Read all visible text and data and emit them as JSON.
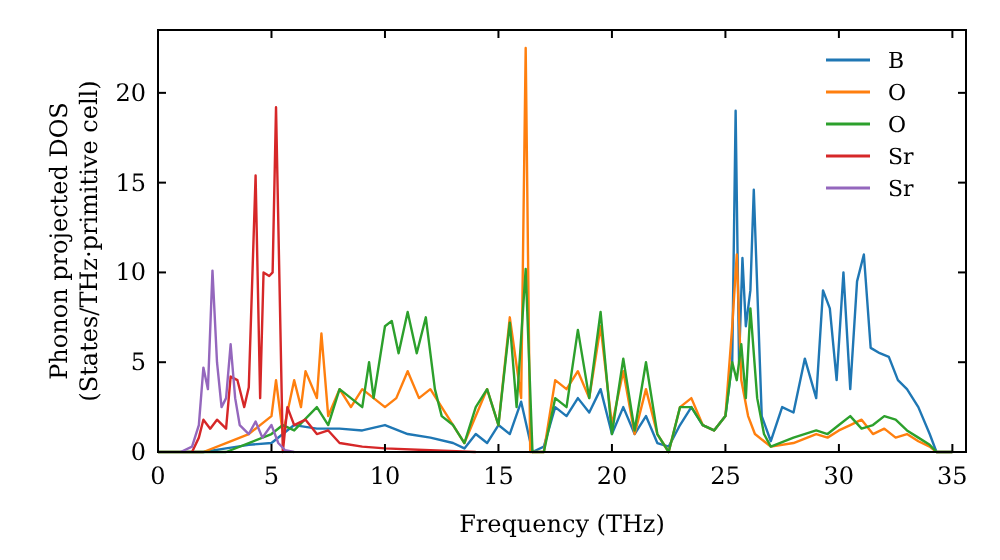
{
  "chart_data": {
    "type": "line",
    "xlabel": "Frequency (THz)",
    "ylabel": "Phonon projected DOS\n(States/THz·primitive cell)",
    "xlim": [
      0,
      35.6
    ],
    "ylim": [
      0,
      23.5
    ],
    "xticks": [
      0,
      5,
      10,
      15,
      20,
      25,
      30,
      35
    ],
    "yticks": [
      0,
      5,
      10,
      15,
      20
    ],
    "legend": "top right",
    "grid": false,
    "series": [
      {
        "name": "B",
        "color": "#1f77b4",
        "x": [
          0,
          2,
          3,
          4,
          5,
          5.5,
          6,
          7,
          8,
          9,
          10,
          11,
          12,
          13,
          13.5,
          14,
          14.5,
          15,
          15.5,
          16,
          16.5,
          17,
          17.5,
          18,
          18.5,
          19,
          19.5,
          20,
          20.5,
          21,
          21.5,
          22,
          22.5,
          23,
          23.5,
          24,
          24.5,
          25,
          25.3,
          25.45,
          25.6,
          25.75,
          25.9,
          26.1,
          26.25,
          26.6,
          27,
          27.5,
          28,
          28.5,
          29,
          29.3,
          29.6,
          29.9,
          30.2,
          30.5,
          30.8,
          31.1,
          31.4,
          31.8,
          32.2,
          32.6,
          33,
          33.5,
          34,
          34.3,
          35
        ],
        "values": [
          0,
          0,
          0.2,
          0.4,
          0.5,
          1.0,
          1.5,
          1.3,
          1.3,
          1.2,
          1.5,
          1.0,
          0.8,
          0.5,
          0.2,
          1.0,
          0.5,
          1.5,
          1.0,
          2.8,
          0,
          0.3,
          2.5,
          2.0,
          3.0,
          2.2,
          3.5,
          1.0,
          2.5,
          1.0,
          2.0,
          0.5,
          0.3,
          1.5,
          2.5,
          1.5,
          1.2,
          2.0,
          5,
          19.0,
          5,
          10.8,
          7,
          9,
          14.6,
          2,
          0.6,
          2.5,
          2.2,
          5.2,
          3.0,
          9.0,
          8.0,
          4,
          10,
          3.5,
          9.5,
          11.0,
          5.8,
          5.5,
          5.3,
          4.0,
          3.5,
          2.5,
          1,
          0,
          0
        ]
      },
      {
        "name": "O",
        "color": "#ff7f0e",
        "x": [
          0,
          2,
          3,
          4,
          5,
          5.2,
          5.5,
          6,
          6.3,
          6.5,
          7,
          7.2,
          7.5,
          8,
          8.5,
          9,
          9.5,
          10,
          10.5,
          11,
          11.5,
          12,
          12.5,
          13,
          13.5,
          14,
          14.5,
          15,
          15.5,
          16,
          16.2,
          16.4,
          17,
          17.5,
          18,
          18.5,
          19,
          19.5,
          20,
          20.5,
          21,
          21.5,
          22,
          22.5,
          23,
          23.5,
          24,
          24.5,
          25,
          25.3,
          25.5,
          25.7,
          26,
          26.3,
          27,
          28,
          29,
          29.5,
          30,
          30.5,
          31,
          31.5,
          32,
          32.5,
          33,
          33.5,
          34,
          34.3,
          35
        ],
        "values": [
          0,
          0,
          0.5,
          1.0,
          2,
          4,
          1,
          4,
          2.5,
          4.5,
          3,
          6.6,
          2,
          3.5,
          2.5,
          3.5,
          3,
          2.5,
          3,
          4.5,
          3,
          3.5,
          2.5,
          1.5,
          0.5,
          2,
          3.5,
          1.5,
          7.5,
          3,
          22.5,
          0,
          0,
          4.0,
          3.5,
          4.5,
          3.0,
          7.0,
          1.5,
          4.5,
          1,
          3.5,
          1,
          0,
          2.5,
          3,
          1.5,
          1.2,
          2,
          7,
          11,
          4,
          2.0,
          1,
          0.3,
          0.5,
          1.0,
          0.8,
          1.2,
          1.5,
          1.8,
          1.0,
          1.3,
          0.8,
          1.0,
          0.6,
          0.3,
          0,
          0
        ]
      },
      {
        "name": "O",
        "color": "#2ca02c",
        "x": [
          0,
          3,
          4,
          5,
          5.5,
          6,
          7,
          7.5,
          8,
          8.5,
          9,
          9.3,
          9.5,
          10,
          10.3,
          10.6,
          11,
          11.4,
          11.8,
          12.2,
          12.5,
          13,
          13.5,
          14,
          14.5,
          15,
          15.5,
          15.8,
          16.2,
          16.5,
          17,
          17.5,
          18,
          18.5,
          19,
          19.5,
          20,
          20.5,
          21,
          21.5,
          22,
          22.5,
          23,
          23.5,
          24,
          24.5,
          25,
          25.3,
          25.5,
          25.7,
          25.9,
          26.1,
          26.4,
          26.7,
          27,
          28,
          29,
          29.5,
          30,
          30.5,
          31,
          31.5,
          32,
          32.5,
          33,
          33.5,
          34,
          34.3,
          35
        ],
        "values": [
          0,
          0,
          0.5,
          1,
          1.5,
          1.2,
          2.5,
          1.5,
          3.5,
          3,
          2.5,
          5,
          3,
          7,
          7.3,
          5.5,
          7.8,
          5.5,
          7.5,
          3.5,
          2,
          1.5,
          0.5,
          2.5,
          3.5,
          1.5,
          7.2,
          2.5,
          10.2,
          0,
          0,
          3,
          2.5,
          6.8,
          3,
          7.8,
          1,
          5.2,
          1.2,
          5,
          1,
          0,
          2.5,
          2.5,
          1.5,
          1.2,
          2,
          5,
          4,
          6,
          3,
          8,
          3,
          1,
          0.3,
          0.8,
          1.2,
          1,
          1.5,
          2.0,
          1.3,
          1.5,
          2.0,
          1.8,
          1.2,
          0.8,
          0.4,
          0,
          0
        ]
      },
      {
        "name": "Sr",
        "color": "#d62728",
        "x": [
          1.5,
          1.8,
          2,
          2.3,
          2.6,
          3,
          3.2,
          3.5,
          3.8,
          4,
          4.3,
          4.5,
          4.65,
          4.9,
          5.05,
          5.2,
          5.5,
          5.7,
          6,
          6.5,
          7,
          7.5,
          8,
          9,
          10,
          12,
          14
        ],
        "values": [
          0,
          0.8,
          1.8,
          1.3,
          1.8,
          1.3,
          4.2,
          4.0,
          2.5,
          3.6,
          15.4,
          3,
          10,
          9.8,
          10,
          19.2,
          0,
          2.5,
          1.5,
          1.8,
          1.0,
          1.2,
          0.5,
          0.3,
          0.2,
          0.1,
          0
        ]
      },
      {
        "name": "Sr",
        "color": "#9467bd",
        "x": [
          1,
          1.5,
          1.8,
          2,
          2.2,
          2.4,
          2.6,
          2.8,
          3,
          3.2,
          3.4,
          3.6,
          4,
          4.3,
          4.6,
          5,
          5.3,
          5.6,
          6
        ],
        "values": [
          0,
          0.3,
          1.5,
          4.7,
          3.5,
          10.1,
          5,
          2.5,
          3,
          6,
          3,
          1.5,
          1,
          1.7,
          0.8,
          1.5,
          0.5,
          0.1,
          0
        ]
      }
    ]
  }
}
